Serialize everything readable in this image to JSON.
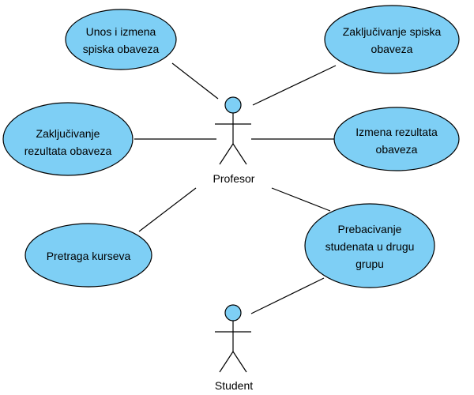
{
  "diagram": {
    "type": "use-case",
    "actors": {
      "profesor": {
        "name": "Profesor"
      },
      "student": {
        "name": "Student"
      }
    },
    "use_cases": {
      "unos_izmena": {
        "lines": [
          "Unos i izmena",
          "spiska obaveza"
        ]
      },
      "zakljucivanje_spiska": {
        "lines": [
          "Zaključivanje spiska",
          "obaveza"
        ]
      },
      "zakljucivanje_rezultata": {
        "lines": [
          "Zaključivanje",
          "rezultata obaveza"
        ]
      },
      "izmena_rezultata": {
        "lines": [
          "Izmena rezultata",
          "obaveza"
        ]
      },
      "pretraga_kurseva": {
        "lines": [
          "Pretraga kurseva"
        ]
      },
      "prebacivanje": {
        "lines": [
          "Prebacivanje",
          "studenata u drugu",
          "grupu"
        ]
      }
    },
    "colors": {
      "use_case_fill": "#7ecff5",
      "stroke": "#000000",
      "background": "#ffffff"
    }
  }
}
